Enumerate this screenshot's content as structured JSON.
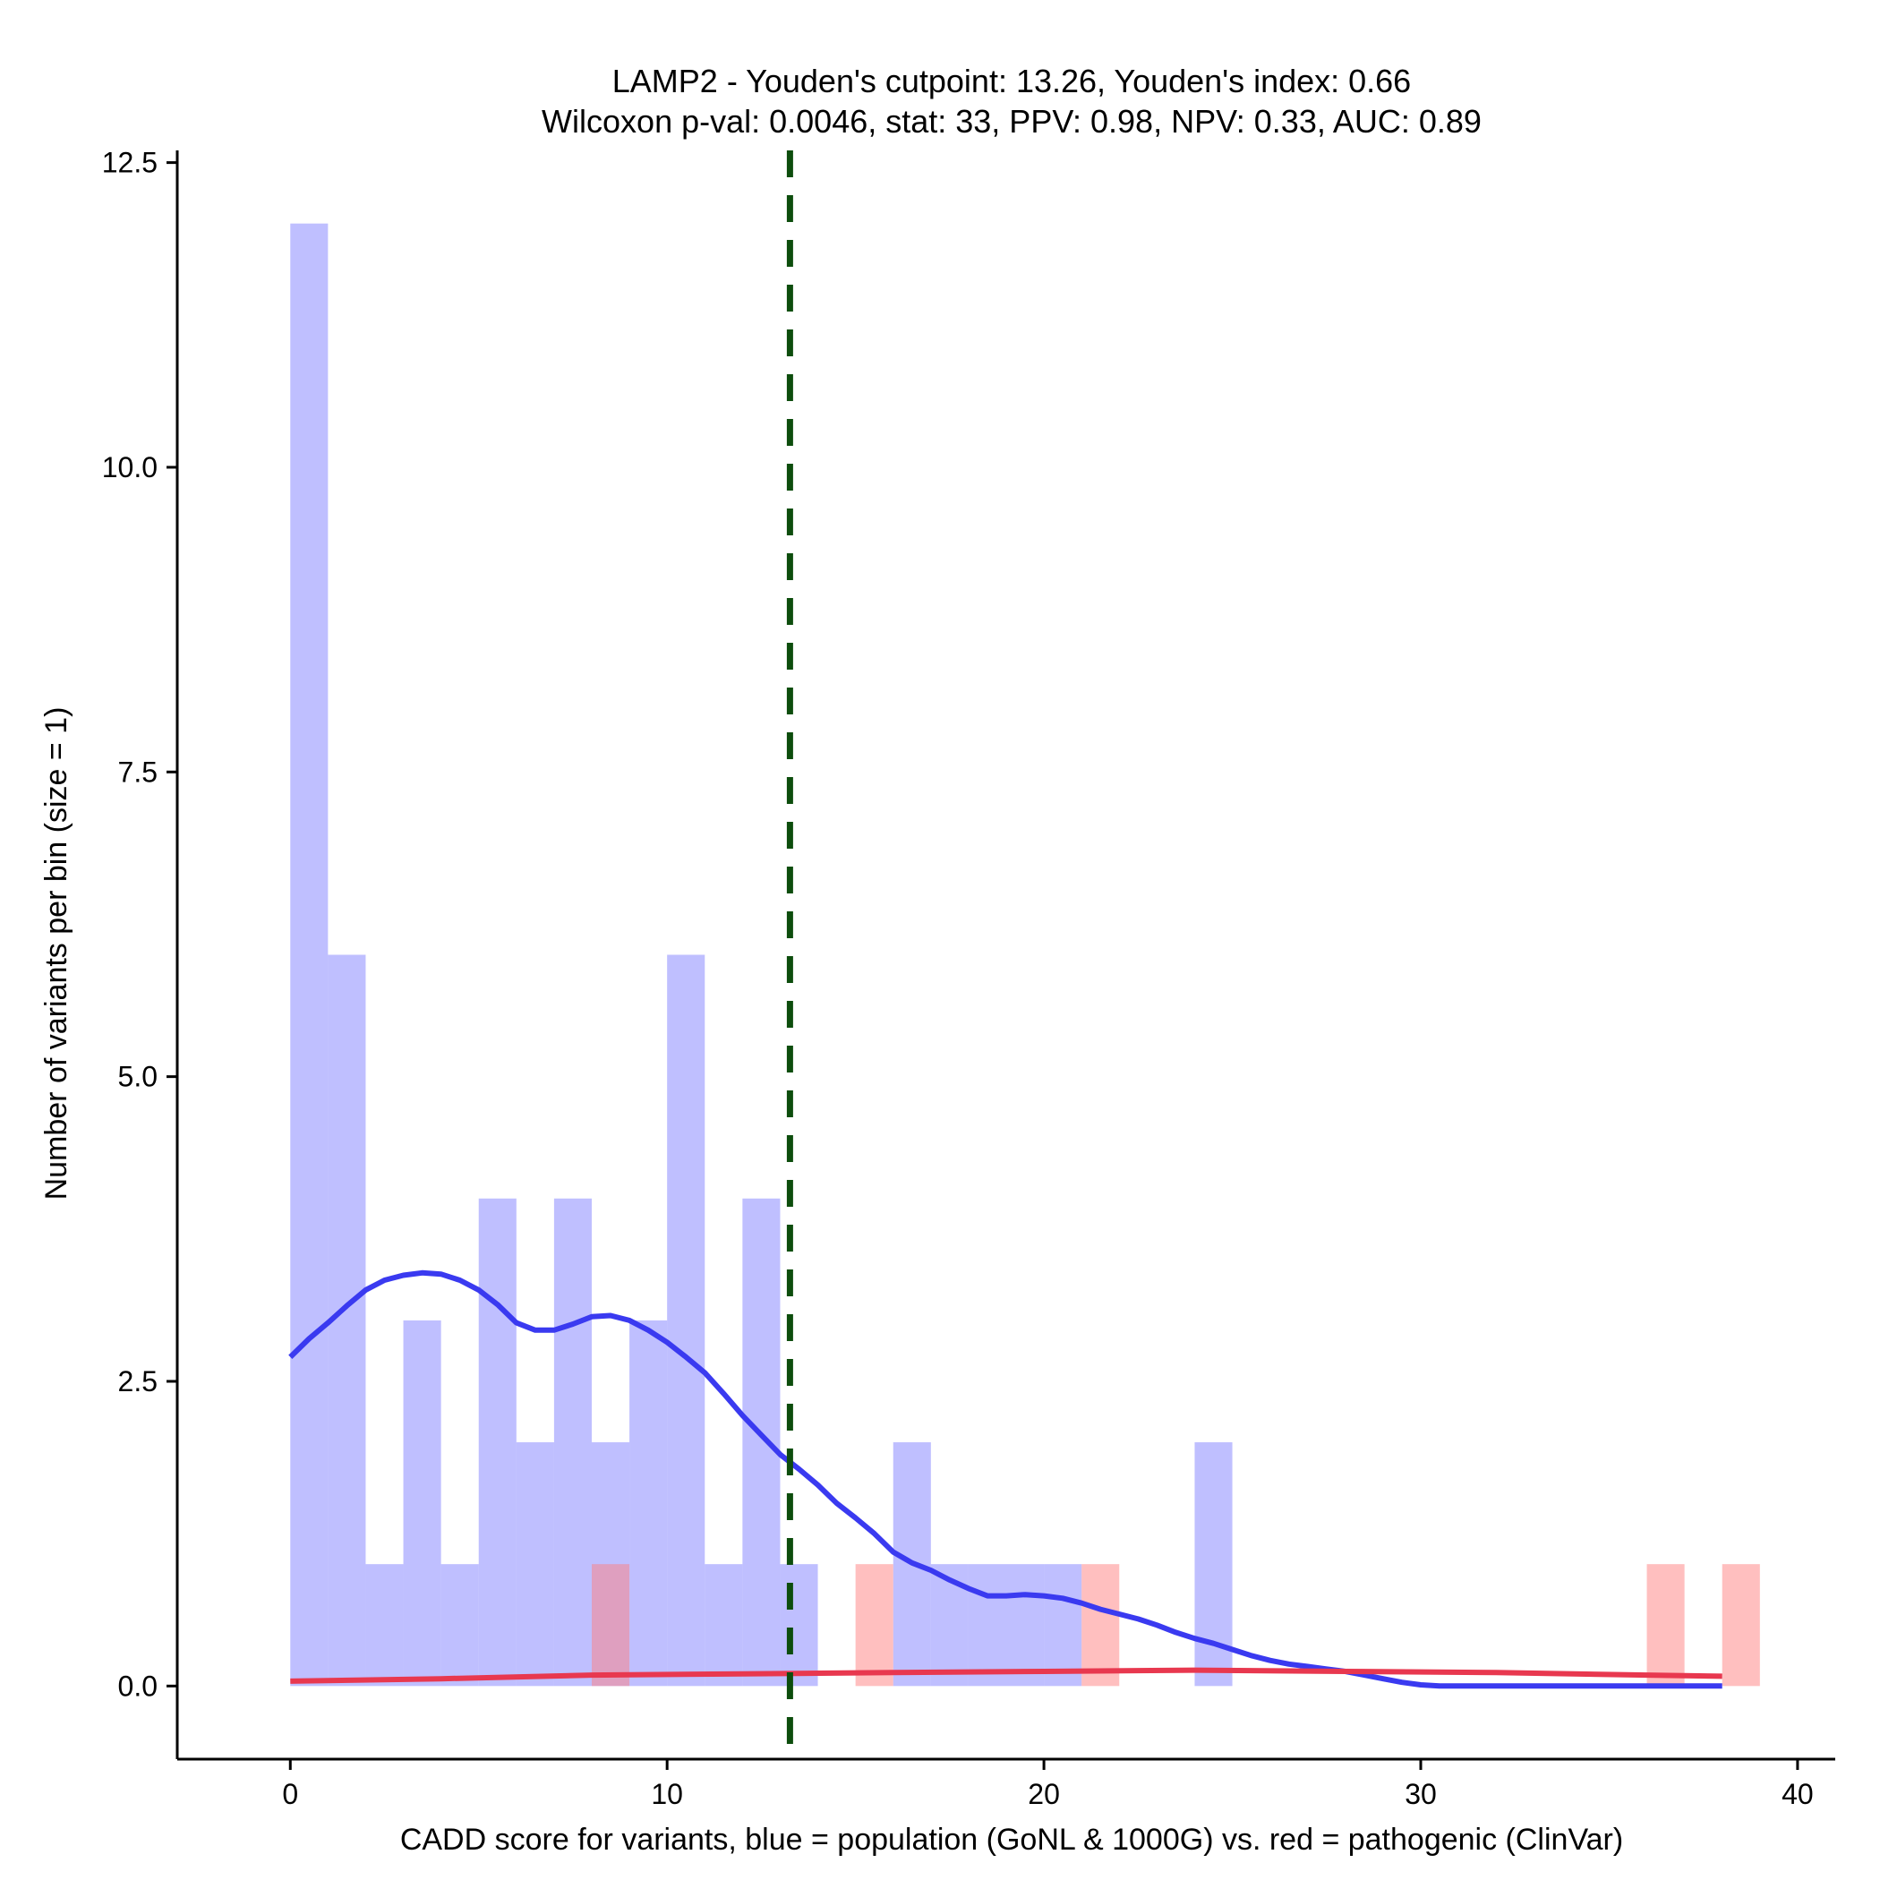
{
  "chart_data": {
    "type": "bar",
    "title": "LAMP2 - Youden's cutpoint: 13.26, Youden's index: 0.66",
    "subtitle": "Wilcoxon p-val: 0.0046, stat: 33, PPV: 0.98, NPV: 0.33, AUC: 0.89",
    "xlabel": "CADD score for variants, blue = population (GoNL & 1000G) vs. red = pathogenic (ClinVar)",
    "ylabel": "Number of variants per bin (size = 1)",
    "xlim": [
      -3,
      41
    ],
    "ylim": [
      -0.6,
      12.6
    ],
    "xticks": [
      0,
      10,
      20,
      30,
      40
    ],
    "xtick_labels": [
      "0",
      "10",
      "20",
      "30",
      "40"
    ],
    "yticks": [
      0,
      2.5,
      5,
      7.5,
      10,
      12.5
    ],
    "ytick_labels": [
      "0.0",
      "2.5",
      "5.0",
      "7.5",
      "10.0",
      "12.5"
    ],
    "bin_size": 1,
    "cutpoint": 13.26,
    "colors": {
      "population_bar": "#8080ff",
      "pathogenic_bar": "#ff8080",
      "population_line": "#3a3af0",
      "pathogenic_line": "#e8384f",
      "cutpoint_line": "#0d4d0d",
      "axis": "#000000"
    },
    "series": [
      {
        "name": "population (GoNL & 1000G)",
        "bins": [
          {
            "start": 0,
            "count": 12
          },
          {
            "start": 1,
            "count": 6
          },
          {
            "start": 2,
            "count": 1
          },
          {
            "start": 3,
            "count": 3
          },
          {
            "start": 4,
            "count": 1
          },
          {
            "start": 5,
            "count": 4
          },
          {
            "start": 6,
            "count": 2
          },
          {
            "start": 7,
            "count": 4
          },
          {
            "start": 8,
            "count": 2
          },
          {
            "start": 9,
            "count": 3
          },
          {
            "start": 10,
            "count": 6
          },
          {
            "start": 11,
            "count": 1
          },
          {
            "start": 12,
            "count": 4
          },
          {
            "start": 13,
            "count": 1
          },
          {
            "start": 16,
            "count": 2
          },
          {
            "start": 17,
            "count": 1
          },
          {
            "start": 18,
            "count": 1
          },
          {
            "start": 19,
            "count": 1
          },
          {
            "start": 20,
            "count": 1
          },
          {
            "start": 24,
            "count": 2
          }
        ]
      },
      {
        "name": "pathogenic (ClinVar)",
        "bins": [
          {
            "start": 8,
            "count": 1
          },
          {
            "start": 15,
            "count": 1
          },
          {
            "start": 21,
            "count": 1
          },
          {
            "start": 36,
            "count": 1
          },
          {
            "start": 38,
            "count": 1
          }
        ]
      }
    ],
    "density_population": [
      [
        0,
        2.7
      ],
      [
        0.5,
        2.85
      ],
      [
        1,
        2.98
      ],
      [
        1.5,
        3.12
      ],
      [
        2,
        3.25
      ],
      [
        2.5,
        3.33
      ],
      [
        3,
        3.37
      ],
      [
        3.5,
        3.39
      ],
      [
        4,
        3.38
      ],
      [
        4.5,
        3.33
      ],
      [
        5,
        3.25
      ],
      [
        5.5,
        3.13
      ],
      [
        6,
        2.98
      ],
      [
        6.5,
        2.92
      ],
      [
        7,
        2.92
      ],
      [
        7.5,
        2.97
      ],
      [
        8,
        3.03
      ],
      [
        8.5,
        3.04
      ],
      [
        9,
        3.0
      ],
      [
        9.5,
        2.92
      ],
      [
        10,
        2.82
      ],
      [
        10.5,
        2.7
      ],
      [
        11,
        2.57
      ],
      [
        11.5,
        2.4
      ],
      [
        12,
        2.22
      ],
      [
        12.5,
        2.06
      ],
      [
        13,
        1.9
      ],
      [
        13.5,
        1.78
      ],
      [
        14,
        1.65
      ],
      [
        14.5,
        1.5
      ],
      [
        15,
        1.38
      ],
      [
        15.5,
        1.25
      ],
      [
        16,
        1.1
      ],
      [
        16.5,
        1.01
      ],
      [
        17,
        0.95
      ],
      [
        17.5,
        0.87
      ],
      [
        18,
        0.8
      ],
      [
        18.5,
        0.74
      ],
      [
        19,
        0.74
      ],
      [
        19.5,
        0.75
      ],
      [
        20,
        0.74
      ],
      [
        20.5,
        0.72
      ],
      [
        21,
        0.68
      ],
      [
        21.5,
        0.63
      ],
      [
        22,
        0.59
      ],
      [
        22.5,
        0.55
      ],
      [
        23,
        0.5
      ],
      [
        23.5,
        0.44
      ],
      [
        24,
        0.39
      ],
      [
        24.5,
        0.35
      ],
      [
        25,
        0.3
      ],
      [
        25.5,
        0.25
      ],
      [
        26,
        0.21
      ],
      [
        26.5,
        0.18
      ],
      [
        27,
        0.16
      ],
      [
        27.5,
        0.14
      ],
      [
        28,
        0.12
      ],
      [
        28.5,
        0.09
      ],
      [
        29,
        0.06
      ],
      [
        29.5,
        0.03
      ],
      [
        30,
        0.01
      ],
      [
        30.5,
        0.0
      ],
      [
        31,
        0.0
      ],
      [
        32,
        0.0
      ],
      [
        34,
        0.0
      ],
      [
        36,
        0.0
      ],
      [
        38,
        0.0
      ]
    ],
    "density_pathogenic": [
      [
        0,
        0.04
      ],
      [
        4,
        0.06
      ],
      [
        8,
        0.09
      ],
      [
        12,
        0.1
      ],
      [
        16,
        0.11
      ],
      [
        20,
        0.12
      ],
      [
        24,
        0.13
      ],
      [
        28,
        0.12
      ],
      [
        32,
        0.11
      ],
      [
        36,
        0.09
      ],
      [
        38,
        0.08
      ]
    ]
  }
}
